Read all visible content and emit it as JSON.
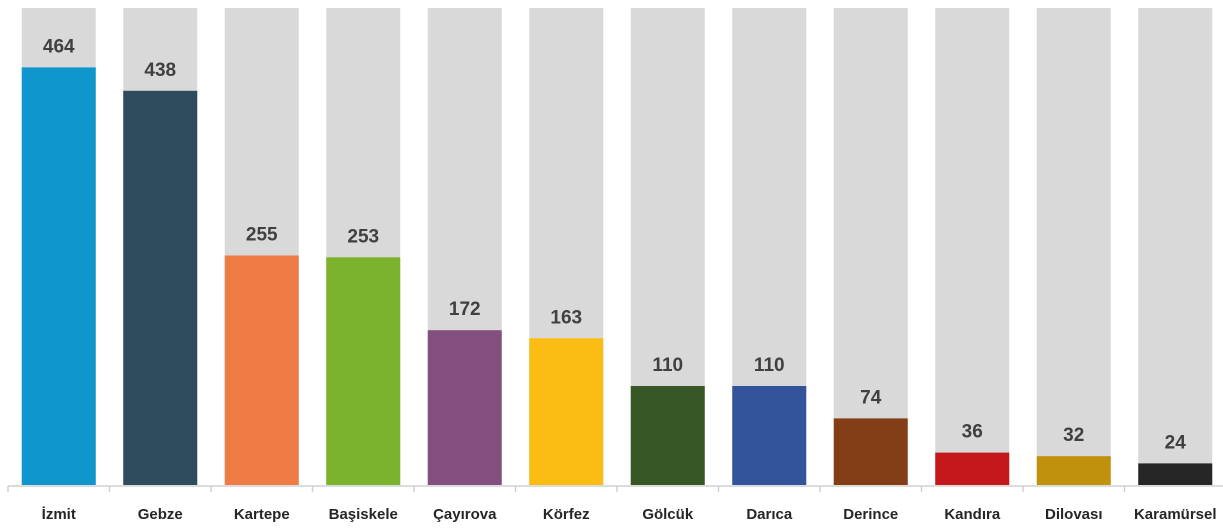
{
  "chart_data": {
    "type": "bar",
    "categories": [
      "İzmit",
      "Gebze",
      "Kartepe",
      "Başiskele",
      "Çayırova",
      "Körfez",
      "Gölcük",
      "Darıca",
      "Derince",
      "Kandıra",
      "Dilovası",
      "Karamürsel"
    ],
    "values": [
      464,
      438,
      255,
      253,
      172,
      163,
      110,
      110,
      74,
      36,
      32,
      24
    ],
    "colors": [
      "#0e96cd",
      "#2f4b5e",
      "#ef7b45",
      "#7cb32d",
      "#834f7f",
      "#fbbc13",
      "#385726",
      "#33539b",
      "#833e17",
      "#c3171b",
      "#c0910c",
      "#262626"
    ],
    "ylim": [
      0,
      530
    ]
  }
}
